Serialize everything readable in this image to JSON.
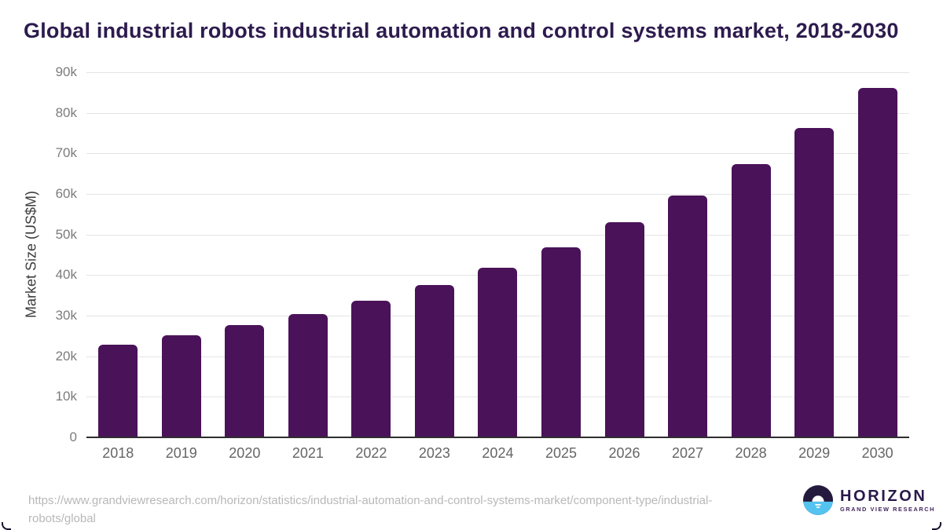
{
  "title": "Global industrial robots industrial automation and control systems market, 2018-2030",
  "footer": {
    "source_url": "https://www.grandviewresearch.com/horizon/statistics/industrial-automation-and-control-systems-market/component-type/industrial-robots/global",
    "logo": {
      "icon": "horizon-globe-icon",
      "name": "HORIZON",
      "subtitle": "GRAND VIEW RESEARCH"
    }
  },
  "colors": {
    "bar": "#4a1259",
    "title": "#2d1b4e",
    "grid": "#e4e4e4",
    "axis_line": "#2e2e2e",
    "tick": "#7c7c7c",
    "xlabel": "#656565",
    "ylabel": "#3c3c3c",
    "url": "#b8b8b8",
    "logo_navy": "#241a3e",
    "logo_blue": "#55c3ef",
    "logo_text": "#2a1a4a"
  },
  "chart_data": {
    "type": "bar",
    "title": "Global industrial robots industrial automation and control systems market, 2018-2030",
    "categories": [
      "2018",
      "2019",
      "2020",
      "2021",
      "2022",
      "2023",
      "2024",
      "2025",
      "2026",
      "2027",
      "2028",
      "2029",
      "2030"
    ],
    "values": [
      22900,
      25100,
      27700,
      30400,
      33700,
      37500,
      41900,
      46900,
      53000,
      59700,
      67400,
      76300,
      86200
    ],
    "series": [
      {
        "name": "Market Size (US$M)",
        "values": [
          22900,
          25100,
          27700,
          30400,
          33700,
          37500,
          41900,
          46900,
          53000,
          59700,
          67400,
          76300,
          86200
        ]
      }
    ],
    "xlabel": "",
    "ylabel": "Market Size (US$M)",
    "ylim": [
      0,
      90000
    ],
    "ytick_step": 10000,
    "ytick_labels": [
      "0",
      "10k",
      "20k",
      "30k",
      "40k",
      "50k",
      "60k",
      "70k",
      "80k",
      "90k"
    ],
    "grid": "horizontal-only",
    "legend": "none",
    "bar_corner_radius": 6
  }
}
